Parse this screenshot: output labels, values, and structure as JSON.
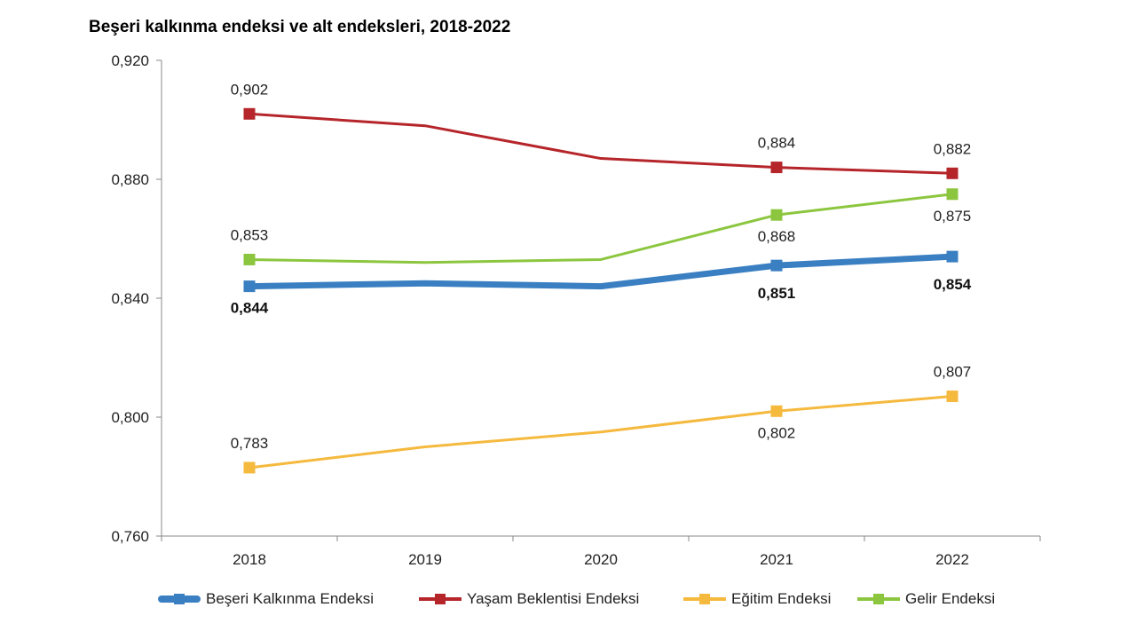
{
  "chart_data": {
    "type": "line",
    "title": "Beşeri kalkınma endeksi ve alt endeksleri, 2018-2022",
    "xlabel": "",
    "ylabel": "",
    "categories": [
      "2018",
      "2019",
      "2020",
      "2021",
      "2022"
    ],
    "ylim": [
      0.76,
      0.92
    ],
    "yticks": [
      "0,760",
      "0,800",
      "0,840",
      "0,880",
      "0,920"
    ],
    "grid": false,
    "legend_position": "bottom",
    "series": [
      {
        "name": "Beşeri Kalkınma Endeksi",
        "color": "#3a7fc1",
        "values": [
          0.844,
          0.845,
          0.844,
          0.851,
          0.854
        ],
        "labels": [
          "0,844",
          "",
          "",
          "0,851",
          "0,854"
        ]
      },
      {
        "name": "Yaşam Beklentisi Endeksi",
        "color": "#b5252a",
        "values": [
          0.902,
          0.898,
          0.887,
          0.884,
          0.882
        ],
        "labels": [
          "0,902",
          "",
          "",
          "0,884",
          "0,882"
        ]
      },
      {
        "name": "Eğitim Endeksi",
        "color": "#f5b93e",
        "values": [
          0.783,
          0.79,
          0.795,
          0.802,
          0.807
        ],
        "labels": [
          "0,783",
          "",
          "",
          "0,802",
          "0,807"
        ]
      },
      {
        "name": "Gelir Endeksi",
        "color": "#8cc63f",
        "values": [
          0.853,
          0.852,
          0.853,
          0.868,
          0.875
        ],
        "labels": [
          "0,853",
          "",
          "",
          "0,868",
          "0,875"
        ]
      }
    ]
  }
}
